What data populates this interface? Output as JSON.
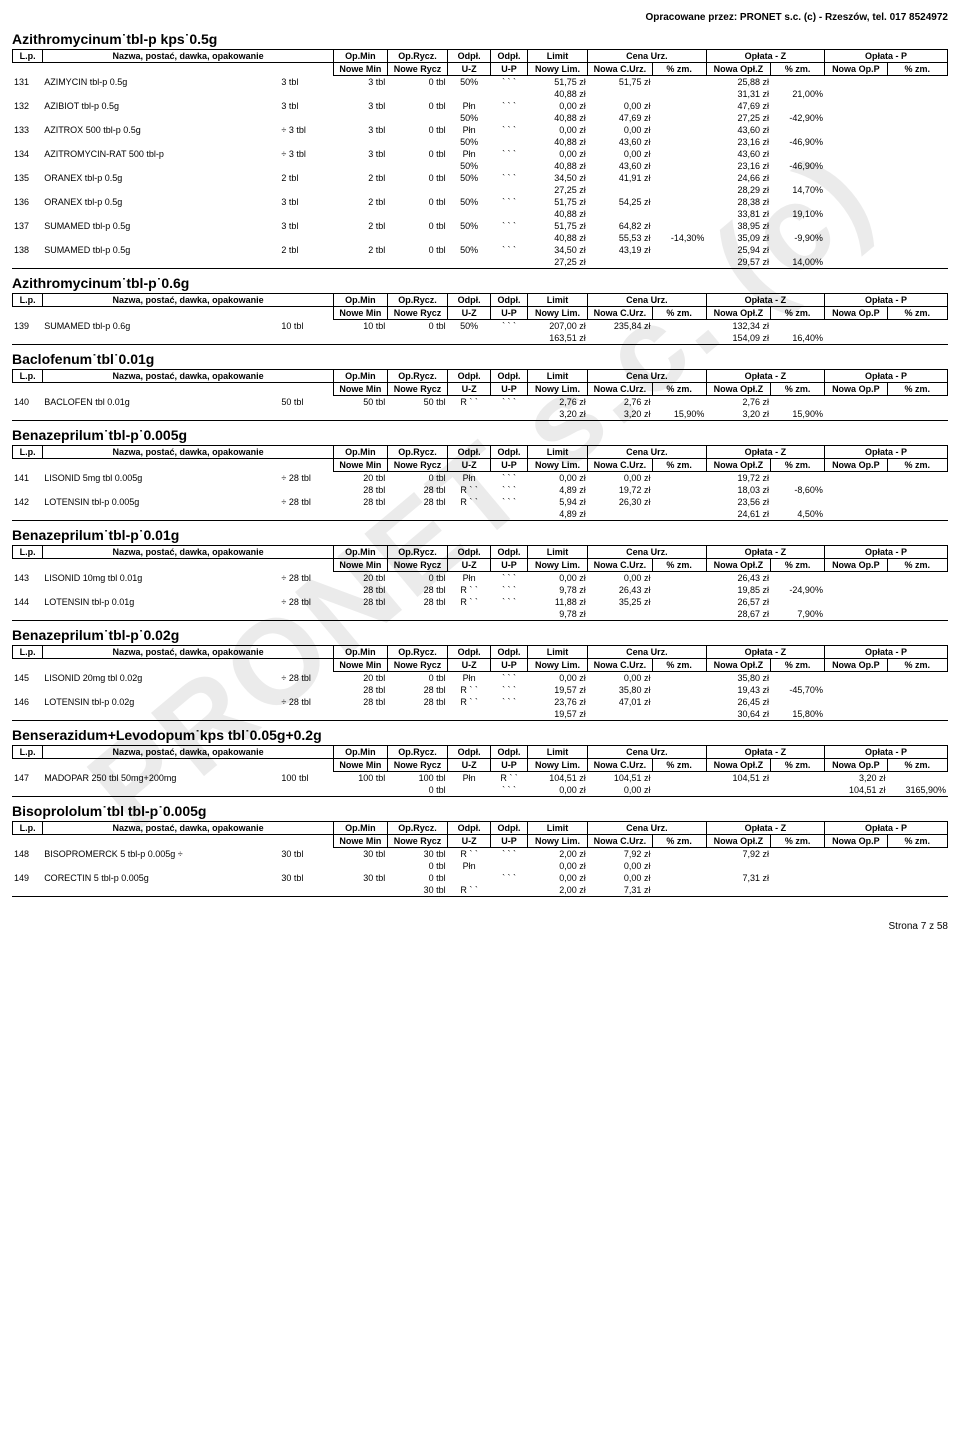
{
  "header_right": "Opracowane przez: PRONET s.c. (c) - Rzeszów, tel. 017 8524972",
  "footer": "Strona 7 z 58",
  "col_hdr1": {
    "lp": "L.p.",
    "name": "Nazwa, postać, dawka, opakowanie",
    "opmin": "Op.Min",
    "oprycz": "Op.Rycz.",
    "odpl1": "Odpł.",
    "odpl2": "Odpł.",
    "limit": "Limit",
    "cena": "Cena Urz.",
    "oplz": "Opłata - Z",
    "opp": "Opłata - P"
  },
  "col_hdr2": {
    "nowemin": "Nowe Min",
    "nowerycz": "Nowe Rycz",
    "uz": "U-Z",
    "up": "U-P",
    "nowylim": "Nowy Lim.",
    "nowacurz": "Nowa C.Urz.",
    "pzm": "% zm.",
    "nowaoplz": "Nowa Opł.Z",
    "nowaopp": "Nowa Op.P"
  },
  "sections": [
    {
      "title": "Azithromycinum˙tbl-p kps˙0.5g",
      "rows": [
        {
          "lp": "131",
          "n": "AZIMYCIN tbl-p 0.5g",
          "pk": "3 tbl",
          "a": [
            "3 tbl",
            "0 tbl",
            "50%",
            "` ` `",
            "51,75 zł",
            "51,75 zł",
            "",
            "25,88 zł",
            "",
            "",
            ""
          ],
          "b": [
            "",
            "",
            "",
            "",
            "40,88 zł",
            "",
            "",
            "31,31 zł",
            "21,00%",
            "",
            ""
          ]
        },
        {
          "lp": "132",
          "n": "AZIBIOT tbl-p 0.5g",
          "pk": "3 tbl",
          "a": [
            "3 tbl",
            "0 tbl",
            "Płn",
            "` ` `",
            "0,00 zł",
            "0,00 zł",
            "",
            "47,69 zł",
            "",
            "",
            ""
          ],
          "b": [
            "",
            "",
            "50%",
            "",
            "40,88 zł",
            "47,69 zł",
            "",
            "27,25 zł",
            "-42,90%",
            "",
            ""
          ]
        },
        {
          "lp": "133",
          "n": "AZITROX 500 tbl-p 0.5g",
          "pk": "÷   3 tbl",
          "a": [
            "3 tbl",
            "0 tbl",
            "Płn",
            "` ` `",
            "0,00 zł",
            "0,00 zł",
            "",
            "43,60 zł",
            "",
            "",
            ""
          ],
          "b": [
            "",
            "",
            "50%",
            "",
            "40,88 zł",
            "43,60 zł",
            "",
            "23,16 zł",
            "-46,90%",
            "",
            ""
          ]
        },
        {
          "lp": "134",
          "n": "AZITROMYCIN-RAT 500 tbl-p",
          "pk": "÷   3 tbl",
          "a": [
            "3 tbl",
            "0 tbl",
            "Płn",
            "` ` `",
            "0,00 zł",
            "0,00 zł",
            "",
            "43,60 zł",
            "",
            "",
            ""
          ],
          "b": [
            "",
            "",
            "50%",
            "",
            "40,88 zł",
            "43,60 zł",
            "",
            "23,16 zł",
            "-46,90%",
            "",
            ""
          ]
        },
        {
          "lp": "135",
          "n": "ORANEX tbl-p 0.5g",
          "pk": "2 tbl",
          "a": [
            "2 tbl",
            "0 tbl",
            "50%",
            "` ` `",
            "34,50 zł",
            "41,91 zł",
            "",
            "24,66 zł",
            "",
            "",
            ""
          ],
          "b": [
            "",
            "",
            "",
            "",
            "27,25 zł",
            "",
            "",
            "28,29 zł",
            "14,70%",
            "",
            ""
          ]
        },
        {
          "lp": "136",
          "n": "ORANEX tbl-p 0.5g",
          "pk": "3 tbl",
          "a": [
            "2 tbl",
            "0 tbl",
            "50%",
            "` ` `",
            "51,75 zł",
            "54,25 zł",
            "",
            "28,38 zł",
            "",
            "",
            ""
          ],
          "b": [
            "",
            "",
            "",
            "",
            "40,88 zł",
            "",
            "",
            "33,81 zł",
            "19,10%",
            "",
            ""
          ]
        },
        {
          "lp": "137",
          "n": "SUMAMED tbl-p 0.5g",
          "pk": "3 tbl",
          "a": [
            "2 tbl",
            "0 tbl",
            "50%",
            "` ` `",
            "51,75 zł",
            "64,82 zł",
            "",
            "38,95 zł",
            "",
            "",
            ""
          ],
          "b": [
            "",
            "",
            "",
            "",
            "40,88 zł",
            "55,53 zł",
            "-14,30%",
            "35,09 zł",
            "-9,90%",
            "",
            ""
          ]
        },
        {
          "lp": "138",
          "n": "SUMAMED tbl-p 0.5g",
          "pk": "2 tbl",
          "a": [
            "2 tbl",
            "0 tbl",
            "50%",
            "` ` `",
            "34,50 zł",
            "43,19 zł",
            "",
            "25,94 zł",
            "",
            "",
            ""
          ],
          "b": [
            "",
            "",
            "",
            "",
            "27,25 zł",
            "",
            "",
            "29,57 zł",
            "14,00%",
            "",
            ""
          ]
        }
      ]
    },
    {
      "title": "Azithromycinum˙tbl-p˙0.6g",
      "rows": [
        {
          "lp": "139",
          "n": "SUMAMED tbl-p 0.6g",
          "pk": "10 tbl",
          "a": [
            "10 tbl",
            "0 tbl",
            "50%",
            "` ` `",
            "207,00 zł",
            "235,84 zł",
            "",
            "132,34 zł",
            "",
            "",
            ""
          ],
          "b": [
            "",
            "",
            "",
            "",
            "163,51 zł",
            "",
            "",
            "154,09 zł",
            "16,40%",
            "",
            ""
          ]
        }
      ]
    },
    {
      "title": "Baclofenum˙tbl˙0.01g",
      "rows": [
        {
          "lp": "140",
          "n": "BACLOFEN tbl 0.01g",
          "pk": "50 tbl",
          "a": [
            "50 tbl",
            "50 tbl",
            "R ` `",
            "` ` `",
            "2,76 zł",
            "2,76 zł",
            "",
            "2,76 zł",
            "",
            "",
            ""
          ],
          "b": [
            "",
            "",
            "",
            "",
            "3,20 zł",
            "3,20 zł",
            "15,90%",
            "3,20 zł",
            "15,90%",
            "",
            ""
          ]
        }
      ]
    },
    {
      "title": "Benazeprilum˙tbl-p˙0.005g",
      "rows": [
        {
          "lp": "141",
          "n": "LISONID 5mg tbl 0.005g",
          "pk": "÷   28 tbl",
          "a": [
            "20 tbl",
            "0 tbl",
            "Płn",
            "` ` `",
            "0,00 zł",
            "0,00 zł",
            "",
            "19,72 zł",
            "",
            "",
            ""
          ],
          "b": [
            "28 tbl",
            "28 tbl",
            "R ` `",
            "` ` `",
            "4,89 zł",
            "19,72 zł",
            "",
            "18,03 zł",
            "-8,60%",
            "",
            ""
          ]
        },
        {
          "lp": "142",
          "n": "LOTENSIN tbl-p 0.005g",
          "pk": "÷   28 tbl",
          "a": [
            "28 tbl",
            "28 tbl",
            "R ` `",
            "` ` `",
            "5,94 zł",
            "26,30 zł",
            "",
            "23,56 zł",
            "",
            "",
            ""
          ],
          "b": [
            "",
            "",
            "",
            "",
            "4,89 zł",
            "",
            "",
            "24,61 zł",
            "4,50%",
            "",
            ""
          ]
        }
      ]
    },
    {
      "title": "Benazeprilum˙tbl-p˙0.01g",
      "rows": [
        {
          "lp": "143",
          "n": "LISONID 10mg tbl 0.01g",
          "pk": "÷   28 tbl",
          "a": [
            "20 tbl",
            "0 tbl",
            "Płn",
            "` ` `",
            "0,00 zł",
            "0,00 zł",
            "",
            "26,43 zł",
            "",
            "",
            ""
          ],
          "b": [
            "28 tbl",
            "28 tbl",
            "R ` `",
            "` ` `",
            "9,78 zł",
            "26,43 zł",
            "",
            "19,85 zł",
            "-24,90%",
            "",
            ""
          ]
        },
        {
          "lp": "144",
          "n": "LOTENSIN tbl-p 0.01g",
          "pk": "÷   28 tbl",
          "a": [
            "28 tbl",
            "28 tbl",
            "R ` `",
            "` ` `",
            "11,88 zł",
            "35,25 zł",
            "",
            "26,57 zł",
            "",
            "",
            ""
          ],
          "b": [
            "",
            "",
            "",
            "",
            "9,78 zł",
            "",
            "",
            "28,67 zł",
            "7,90%",
            "",
            ""
          ]
        }
      ]
    },
    {
      "title": "Benazeprilum˙tbl-p˙0.02g",
      "rows": [
        {
          "lp": "145",
          "n": "LISONID 20mg tbl 0.02g",
          "pk": "÷   28 tbl",
          "a": [
            "20 tbl",
            "0 tbl",
            "Płn",
            "` ` `",
            "0,00 zł",
            "0,00 zł",
            "",
            "35,80 zł",
            "",
            "",
            ""
          ],
          "b": [
            "28 tbl",
            "28 tbl",
            "R ` `",
            "` ` `",
            "19,57 zł",
            "35,80 zł",
            "",
            "19,43 zł",
            "-45,70%",
            "",
            ""
          ]
        },
        {
          "lp": "146",
          "n": "LOTENSIN tbl-p 0.02g",
          "pk": "÷   28 tbl",
          "a": [
            "28 tbl",
            "28 tbl",
            "R ` `",
            "` ` `",
            "23,76 zł",
            "47,01 zł",
            "",
            "26,45 zł",
            "",
            "",
            ""
          ],
          "b": [
            "",
            "",
            "",
            "",
            "19,57 zł",
            "",
            "",
            "30,64 zł",
            "15,80%",
            "",
            ""
          ]
        }
      ]
    },
    {
      "title": "Benserazidum+Levodopum˙kps tbl˙0.05g+0.2g",
      "rows": [
        {
          "lp": "147",
          "n": "MADOPAR 250 tbl 50mg+200mg",
          "pk": "100 tbl",
          "a": [
            "100 tbl",
            "100 tbl",
            "Płn",
            "R ` `",
            "104,51 zł",
            "104,51 zł",
            "",
            "104,51 zł",
            "",
            "3,20 zł",
            ""
          ],
          "b": [
            "",
            "0 tbl",
            "",
            "` ` `",
            "0,00 zł",
            "0,00 zł",
            "",
            "",
            "",
            "104,51 zł",
            "3165,90%"
          ]
        }
      ]
    },
    {
      "title": "Bisoprololum˙tbl tbl-p˙0.005g",
      "rows": [
        {
          "lp": "148",
          "n": "BISOPROMERCK 5 tbl-p 0.005g ÷",
          "pk": "30 tbl",
          "a": [
            "30 tbl",
            "30 tbl",
            "R ` `",
            "` ` `",
            "2,00 zł",
            "7,92 zł",
            "",
            "7,92 zł",
            "",
            "",
            ""
          ],
          "b": [
            "",
            "0 tbl",
            "Płn",
            "",
            "0,00 zł",
            "0,00 zł",
            "",
            "",
            "",
            "",
            ""
          ]
        },
        {
          "lp": "149",
          "n": "CORECTIN 5 tbl-p 0.005g",
          "pk": "30 tbl",
          "a": [
            "30 tbl",
            "0 tbl",
            "",
            "` ` `",
            "0,00 zł",
            "0,00 zł",
            "",
            "7,31 zł",
            "",
            "",
            ""
          ],
          "b": [
            "",
            "30 tbl",
            "R ` `",
            "",
            "2,00 zł",
            "7,31 zł",
            "",
            "",
            "",
            "",
            ""
          ]
        }
      ]
    }
  ]
}
